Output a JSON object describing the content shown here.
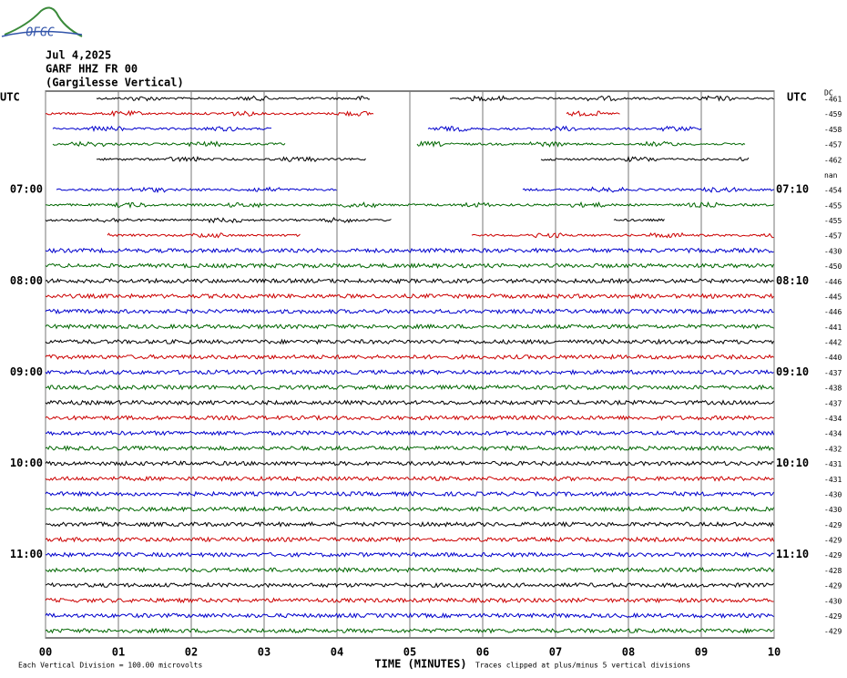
{
  "chart_data": {
    "type": "helicorder",
    "logo": "OFGC",
    "title_lines": [
      "Jul 4,2025",
      "GARF HHZ FR 00",
      "(Gargilesse Vertical)"
    ],
    "left_header": "UTC",
    "right_header": "UTC",
    "dc_header": "DC",
    "xlabel": "TIME (MINUTES)",
    "footer_left": "Each Vertical Division =  100.00 microvolts",
    "footer_right": "Traces clipped at plus/minus 5 vertical divisions",
    "xlim": [
      0,
      10
    ],
    "xticks": [
      {
        "value": 0,
        "label": "00"
      },
      {
        "value": 1,
        "label": "01"
      },
      {
        "value": 2,
        "label": "02"
      },
      {
        "value": 3,
        "label": "03"
      },
      {
        "value": 4,
        "label": "04"
      },
      {
        "value": 5,
        "label": "05"
      },
      {
        "value": 6,
        "label": "06"
      },
      {
        "value": 7,
        "label": "07"
      },
      {
        "value": 8,
        "label": "08"
      },
      {
        "value": 9,
        "label": "09"
      },
      {
        "value": 10,
        "label": "10"
      }
    ],
    "colors": [
      "#000000",
      "#cc0000",
      "#0000cc",
      "#006600"
    ],
    "hour_labels": [
      {
        "row": 6,
        "left": "07:00",
        "right": "07:10"
      },
      {
        "row": 12,
        "left": "08:00",
        "right": "08:10"
      },
      {
        "row": 18,
        "left": "09:00",
        "right": "09:10"
      },
      {
        "row": 24,
        "left": "10:00",
        "right": "10:10"
      },
      {
        "row": 30,
        "left": "11:00",
        "right": "11:10"
      }
    ],
    "dc": [
      -461,
      -459,
      -458,
      -457,
      -462,
      "nan",
      -454,
      -455,
      -455,
      -457,
      -430,
      -450,
      -446,
      -445,
      -446,
      -441,
      -442,
      -440,
      -437,
      -438,
      -437,
      -434,
      -434,
      -432,
      -431,
      -431,
      -430,
      -430,
      -429,
      -429,
      -429,
      -428,
      -429,
      -430,
      -429,
      -429
    ],
    "segments": [
      [
        [
          0.7,
          4.45
        ],
        [
          5.55,
          10
        ]
      ],
      [
        [
          0,
          4.5
        ],
        [
          7.15,
          7.9
        ]
      ],
      [
        [
          0.1,
          3.1
        ],
        [
          5.25,
          9.0
        ]
      ],
      [
        [
          0.1,
          3.3
        ],
        [
          5.1,
          9.6
        ]
      ],
      [
        [
          0.7,
          4.4
        ],
        [
          6.8,
          9.65
        ]
      ],
      [],
      [
        [
          0.15,
          4.0
        ],
        [
          6.55,
          10
        ]
      ],
      [
        [
          0,
          10
        ]
      ],
      [
        [
          0,
          4.75
        ],
        [
          7.8,
          8.5
        ]
      ],
      [
        [
          0.85,
          3.5
        ],
        [
          5.85,
          10
        ]
      ],
      [
        [
          0,
          10
        ]
      ],
      [
        [
          0,
          10
        ]
      ],
      [
        [
          0,
          10
        ]
      ],
      [
        [
          0,
          10
        ]
      ],
      [
        [
          0,
          10
        ]
      ],
      [
        [
          0,
          10
        ]
      ],
      [
        [
          0,
          10
        ]
      ],
      [
        [
          0,
          10
        ]
      ],
      [
        [
          0,
          10
        ]
      ],
      [
        [
          0,
          10
        ]
      ],
      [
        [
          0,
          10
        ]
      ],
      [
        [
          0,
          10
        ]
      ],
      [
        [
          0,
          10
        ]
      ],
      [
        [
          0,
          10
        ]
      ],
      [
        [
          0,
          10
        ]
      ],
      [
        [
          0,
          10
        ]
      ],
      [
        [
          0,
          10
        ]
      ],
      [
        [
          0,
          10
        ]
      ],
      [
        [
          0,
          10
        ]
      ],
      [
        [
          0,
          10
        ]
      ],
      [
        [
          0,
          10
        ]
      ],
      [
        [
          0,
          10
        ]
      ],
      [
        [
          0,
          10
        ]
      ],
      [
        [
          0,
          10
        ]
      ],
      [
        [
          0,
          10
        ]
      ],
      [
        [
          0,
          10
        ]
      ]
    ]
  }
}
